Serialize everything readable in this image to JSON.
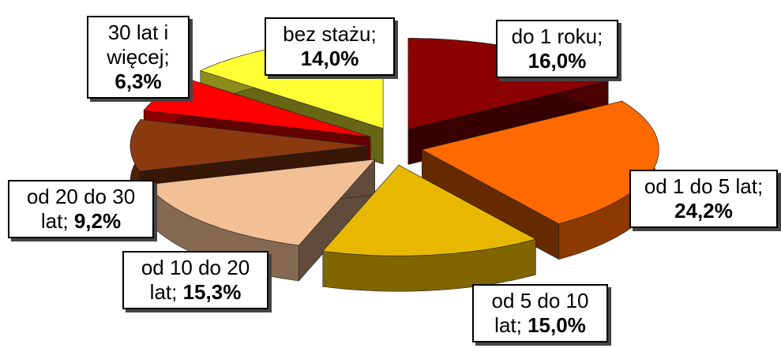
{
  "chart_data": {
    "type": "pie3d",
    "categories": [
      "do 1 roku;",
      "od 1 do 5 lat;",
      "od 5 do 10 lat;",
      "od 10 do 20 lat;",
      "od 20 do 30 lat;",
      "30 lat i więcej;",
      "bez stażu;"
    ],
    "values": [
      16.0,
      24.2,
      15.0,
      15.3,
      9.2,
      6.3,
      14.0
    ],
    "value_labels": [
      "16,0%",
      "24,2%",
      "15,0%",
      "15,3%",
      "9,2%",
      "6,3%",
      "14,0%"
    ],
    "colors": [
      "#8b0000",
      "#ff6a00",
      "#e8b800",
      "#f3bf94",
      "#8b3a10",
      "#ff0000",
      "#ffff33"
    ]
  }
}
